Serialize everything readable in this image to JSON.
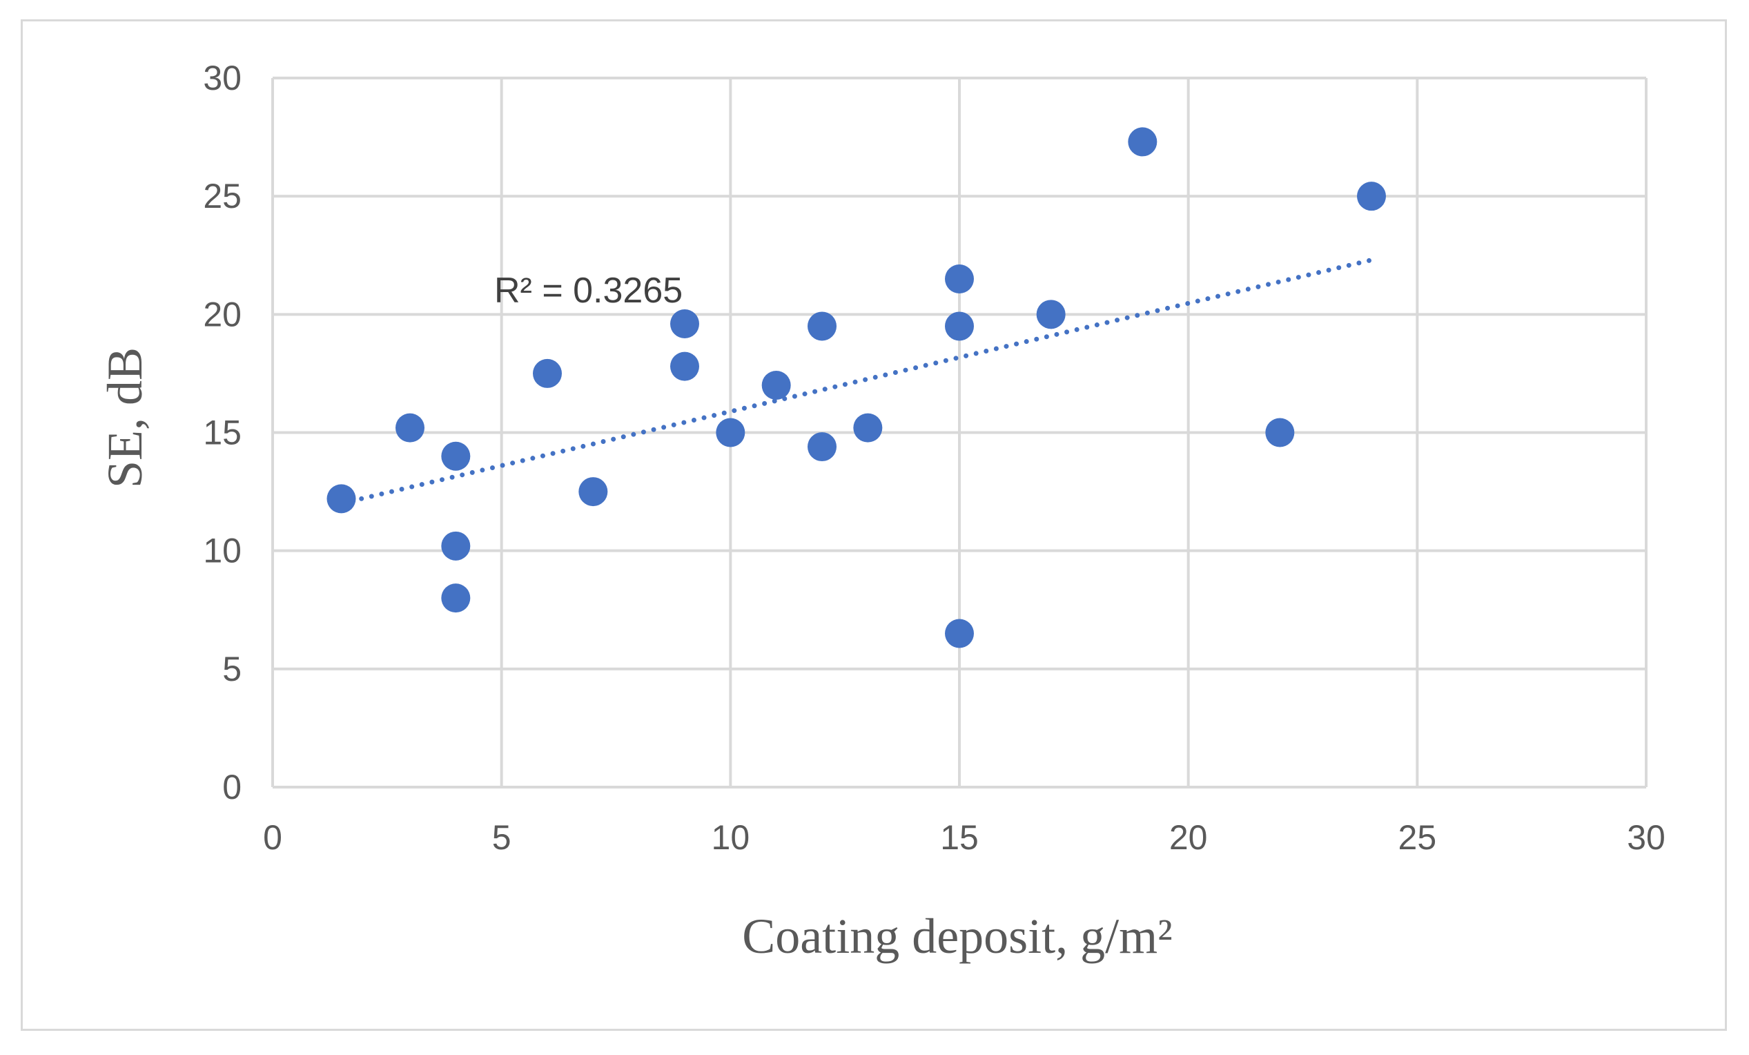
{
  "chart_data": {
    "type": "scatter",
    "title": "",
    "xlabel": "Coating deposit, g/m²",
    "ylabel": "SE, dB",
    "xlim": [
      0,
      30
    ],
    "ylim": [
      0,
      30
    ],
    "xticks": [
      "0",
      "5",
      "10",
      "15",
      "20",
      "25",
      "30"
    ],
    "yticks": [
      "0",
      "5",
      "10",
      "15",
      "20",
      "25",
      "30"
    ],
    "grid": true,
    "series": [
      {
        "name": "SE",
        "color": "#4472c4",
        "points": [
          {
            "x": 1.5,
            "y": 12.2
          },
          {
            "x": 3,
            "y": 15.2
          },
          {
            "x": 4,
            "y": 14.0
          },
          {
            "x": 4,
            "y": 10.2
          },
          {
            "x": 4,
            "y": 8.0
          },
          {
            "x": 6,
            "y": 17.5
          },
          {
            "x": 7,
            "y": 12.5
          },
          {
            "x": 9,
            "y": 19.6
          },
          {
            "x": 9,
            "y": 17.8
          },
          {
            "x": 10,
            "y": 15.0
          },
          {
            "x": 11,
            "y": 17.0
          },
          {
            "x": 12,
            "y": 19.5
          },
          {
            "x": 12,
            "y": 14.4
          },
          {
            "x": 13,
            "y": 15.2
          },
          {
            "x": 15,
            "y": 21.5
          },
          {
            "x": 15,
            "y": 19.5
          },
          {
            "x": 15,
            "y": 6.5
          },
          {
            "x": 17,
            "y": 20.0
          },
          {
            "x": 19,
            "y": 27.3
          },
          {
            "x": 22,
            "y": 15.0
          },
          {
            "x": 24,
            "y": 25.0
          }
        ]
      }
    ],
    "trendline": {
      "type": "linear",
      "style": "dotted",
      "color": "#4472c4",
      "x_range": [
        1.5,
        24
      ],
      "y_at_start": 12.0,
      "y_at_end": 22.3,
      "annotation": "R² = 0.3265"
    }
  }
}
